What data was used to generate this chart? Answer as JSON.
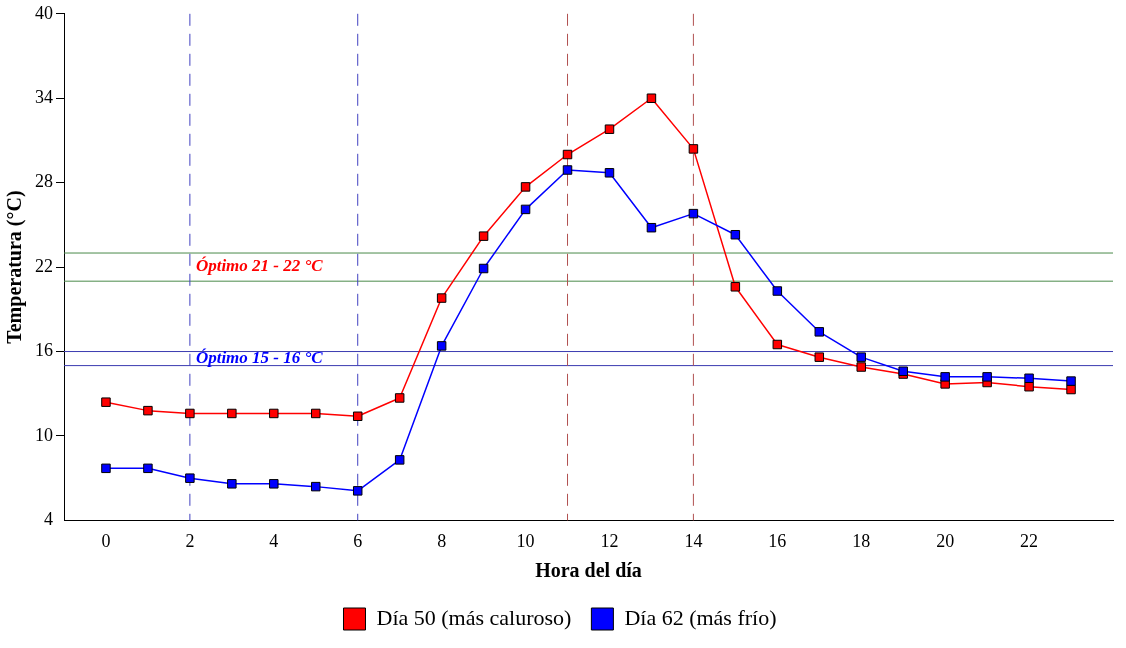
{
  "chart_data": {
    "type": "line",
    "xlabel": "Hora del día",
    "ylabel": "Temperatura (°C)",
    "x": [
      0,
      1,
      2,
      3,
      4,
      5,
      6,
      7,
      8,
      9,
      10,
      11,
      12,
      13,
      14,
      15,
      16,
      17,
      18,
      19,
      20,
      21,
      22,
      23
    ],
    "xlim": [
      -1,
      24
    ],
    "xticks": [
      0,
      2,
      4,
      6,
      8,
      10,
      12,
      14,
      16,
      18,
      20,
      22
    ],
    "ylim": [
      4,
      40
    ],
    "yticks": [
      4,
      10,
      16,
      22,
      28,
      34,
      40
    ],
    "series": [
      {
        "name": "Día 50 (más caluroso)",
        "color": "#ff0000",
        "values": [
          12.4,
          11.8,
          11.6,
          11.6,
          11.6,
          11.6,
          11.4,
          12.7,
          19.8,
          24.2,
          27.7,
          30.0,
          31.8,
          34.0,
          30.4,
          20.6,
          16.5,
          15.6,
          14.9,
          14.4,
          13.7,
          13.8,
          13.5,
          13.3
        ]
      },
      {
        "name": "Día 62 (más frío)",
        "color": "#0000ff",
        "values": [
          7.7,
          7.7,
          7.0,
          6.6,
          6.6,
          6.4,
          6.1,
          8.3,
          16.4,
          21.9,
          26.1,
          28.9,
          28.7,
          24.8,
          25.8,
          24.3,
          20.3,
          17.4,
          15.6,
          14.6,
          14.2,
          14.2,
          14.1,
          13.9
        ]
      }
    ],
    "ref_lines": [
      {
        "axis": "y",
        "value": 23,
        "color": "#4a8a4a",
        "line_style": "solid"
      },
      {
        "axis": "y",
        "value": 21,
        "color": "#4a8a4a",
        "line_style": "solid"
      },
      {
        "axis": "y",
        "value": 16,
        "color": "#3a3ab0",
        "line_style": "solid"
      },
      {
        "axis": "y",
        "value": 15,
        "color": "#3a3ab0",
        "line_style": "solid"
      },
      {
        "axis": "x",
        "value": 2,
        "color": "#4040c0",
        "line_style": "dashed"
      },
      {
        "axis": "x",
        "value": 6,
        "color": "#4040c0",
        "line_style": "dashed"
      },
      {
        "axis": "x",
        "value": 11,
        "color": "#b05050",
        "line_style": "dashed"
      },
      {
        "axis": "x",
        "value": 14,
        "color": "#b05050",
        "line_style": "dashed"
      }
    ],
    "annotations": [
      "Óptimo 21 - 22 °C",
      "Óptimo 15 - 16 °C"
    ],
    "marker": "square",
    "line_style": "solid",
    "grid": false,
    "legend": "bottom"
  }
}
